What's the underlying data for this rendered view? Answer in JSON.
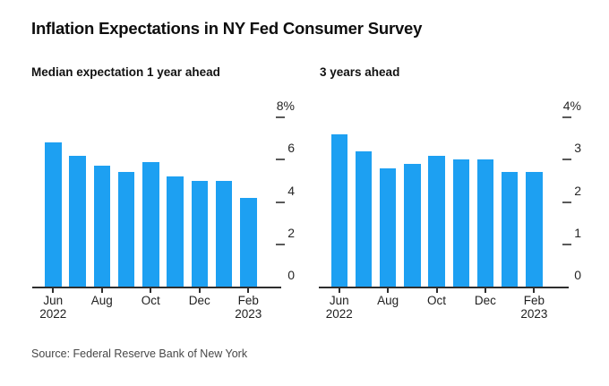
{
  "title": "Inflation Expectations in NY Fed Consumer Survey",
  "source_note": "Source: Federal Reserve Bank of New York",
  "colors": {
    "bar": "#1da0f2",
    "axis_line": "#2e2e2e",
    "y_tick": "#5a5a5a",
    "axis_text": "#262626",
    "title_text": "#0d0d0d",
    "source_text": "#474747",
    "background": "#ffffff"
  },
  "chart_data": [
    {
      "type": "bar",
      "title": "Median expectation 1 year ahead",
      "categories": [
        "Jun 2022",
        "Jul 2022",
        "Aug 2022",
        "Sep 2022",
        "Oct 2022",
        "Nov 2022",
        "Dec 2022",
        "Jan 2023",
        "Feb 2023"
      ],
      "values": [
        6.8,
        6.2,
        5.7,
        5.4,
        5.9,
        5.2,
        5.0,
        5.0,
        4.2
      ],
      "unit": "%",
      "ylim": [
        0,
        8
      ],
      "grid": "off",
      "axis_side": "right",
      "y_ticks": [
        {
          "value": 8,
          "label": "8%"
        },
        {
          "value": 6,
          "label": "6"
        },
        {
          "value": 4,
          "label": "4"
        },
        {
          "value": 2,
          "label": "2"
        },
        {
          "value": 0,
          "label": "0"
        }
      ],
      "x_ticks": [
        {
          "bar_index": 0,
          "lines": [
            "Jun",
            "2022"
          ]
        },
        {
          "bar_index": 2,
          "lines": [
            "Aug"
          ]
        },
        {
          "bar_index": 4,
          "lines": [
            "Oct"
          ]
        },
        {
          "bar_index": 6,
          "lines": [
            "Dec"
          ]
        },
        {
          "bar_index": 8,
          "lines": [
            "Feb",
            "2023"
          ]
        }
      ]
    },
    {
      "type": "bar",
      "title": "3 years ahead",
      "categories": [
        "Jun 2022",
        "Jul 2022",
        "Aug 2022",
        "Sep 2022",
        "Oct 2022",
        "Nov 2022",
        "Dec 2022",
        "Jan 2023",
        "Feb 2023"
      ],
      "values": [
        3.6,
        3.2,
        2.8,
        2.9,
        3.1,
        3.0,
        3.0,
        2.7,
        2.7
      ],
      "unit": "%",
      "ylim": [
        0,
        4
      ],
      "grid": "off",
      "axis_side": "right",
      "y_ticks": [
        {
          "value": 4,
          "label": "4%"
        },
        {
          "value": 3,
          "label": "3"
        },
        {
          "value": 2,
          "label": "2"
        },
        {
          "value": 1,
          "label": "1"
        },
        {
          "value": 0,
          "label": "0"
        }
      ],
      "x_ticks": [
        {
          "bar_index": 0,
          "lines": [
            "Jun",
            "2022"
          ]
        },
        {
          "bar_index": 2,
          "lines": [
            "Aug"
          ]
        },
        {
          "bar_index": 4,
          "lines": [
            "Oct"
          ]
        },
        {
          "bar_index": 6,
          "lines": [
            "Dec"
          ]
        },
        {
          "bar_index": 8,
          "lines": [
            "Feb",
            "2023"
          ]
        }
      ]
    }
  ]
}
